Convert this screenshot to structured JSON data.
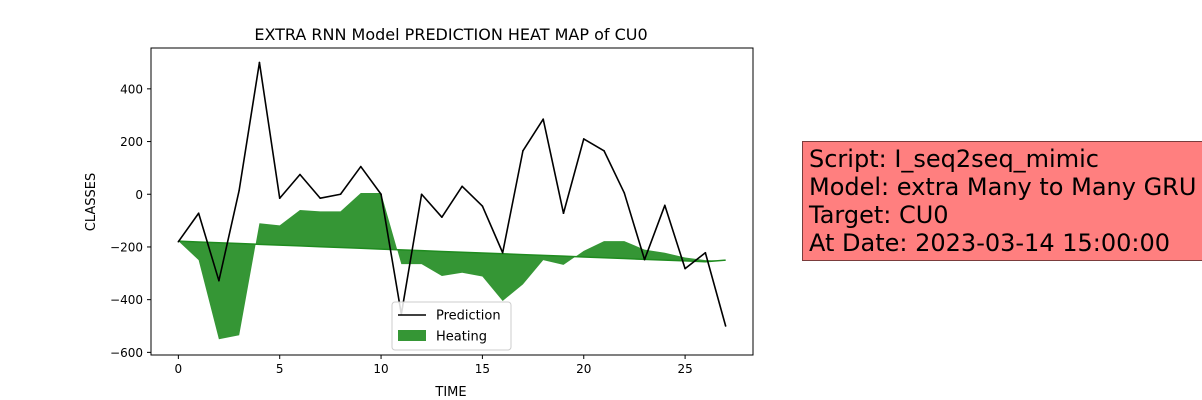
{
  "chart_data": {
    "type": "line",
    "title": "EXTRA RNN Model PREDICTION HEAT MAP of CU0",
    "xlabel": "TIME",
    "ylabel": "CLASSES",
    "xlim": [
      -1.35,
      28.35
    ],
    "ylim": [
      -610,
      555
    ],
    "xticks": [
      0,
      5,
      10,
      15,
      20,
      25
    ],
    "yticks": [
      -600,
      -400,
      -200,
      0,
      200,
      400
    ],
    "grid": false,
    "legend_position": "lower-center",
    "series": [
      {
        "name": "Prediction",
        "kind": "line",
        "color": "#000000",
        "x": [
          0,
          1,
          2,
          3,
          4,
          5,
          6,
          7,
          8,
          9,
          10,
          11,
          12,
          13,
          14,
          15,
          16,
          17,
          18,
          19,
          20,
          21,
          22,
          23,
          24,
          25,
          26,
          27
        ],
        "y": [
          -180,
          -72,
          -328,
          15,
          500,
          -15,
          75,
          -15,
          0,
          105,
          0,
          -455,
          0,
          -87,
          30,
          -45,
          -222,
          165,
          285,
          -72,
          210,
          165,
          5,
          -248,
          -42,
          -282,
          -222,
          -500
        ]
      },
      {
        "name": "Heating",
        "kind": "fill_between",
        "color": "#1f8b1f",
        "x": [
          0,
          1,
          2,
          3,
          4,
          5,
          6,
          7,
          8,
          9,
          10,
          11,
          12,
          13,
          14,
          15,
          16,
          17,
          18,
          19,
          20,
          21,
          22,
          23,
          24,
          25,
          26,
          27
        ],
        "y_upper": [
          -178,
          -250,
          -550,
          -535,
          -110,
          -118,
          -60,
          -65,
          -65,
          5,
          5,
          -265,
          -265,
          -310,
          -298,
          -312,
          -405,
          -342,
          -250,
          -268,
          -215,
          -178,
          -178,
          -210,
          -222,
          -240,
          -250,
          -252
        ],
        "y_lower": [
          -178,
          -181,
          -184,
          -187,
          -190,
          -193,
          -196,
          -199,
          -202,
          -205,
          -208,
          -211,
          -214,
          -217,
          -220,
          -223,
          -226,
          -229,
          -232,
          -235,
          -238,
          -241,
          -244,
          -247,
          -250,
          -253,
          -256,
          -250
        ]
      }
    ]
  },
  "info_box": {
    "lines": [
      "Script: I_seq2seq_mimic",
      "Model: extra Many to Many GRU",
      "Target: CU0",
      "At Date: 2023-03-14 15:00:00"
    ],
    "background": "#ff7f7f"
  }
}
